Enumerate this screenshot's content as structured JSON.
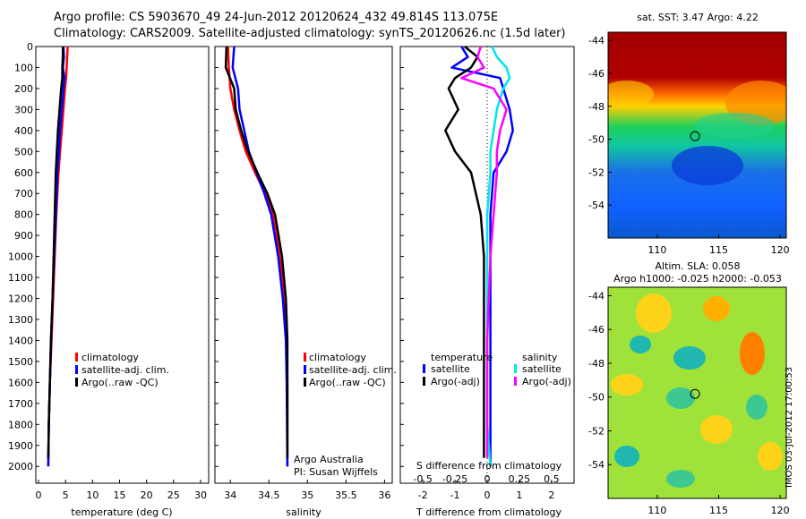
{
  "header": {
    "line1": "Argo profile: CS 5903670_49 24-Jun-2012 20120624_432 49.814S 113.075E",
    "line2": "Climatology: CARS2009. Satellite-adjusted climatology: synTS_20120626.nc (1.5d later)"
  },
  "footer": {
    "stamp": "IMOS 03-Jul-2012 17:00:53"
  },
  "colors": {
    "climatology": "#ff0000",
    "satellite": "#0000ff",
    "argo": "#000000",
    "sal_satellite": "#00e5ee",
    "sal_argo": "#ff00ff"
  },
  "chart_data": [
    {
      "type": "line",
      "name": "temperature-profile",
      "xlabel": "temperature (deg C)",
      "ylabel": "",
      "xlim": [
        -0.5,
        31.5
      ],
      "ylim": [
        2080,
        0
      ],
      "xticks": [
        0,
        5,
        10,
        15,
        20,
        25,
        30
      ],
      "yticks": [
        0,
        100,
        200,
        300,
        400,
        500,
        600,
        700,
        800,
        900,
        1000,
        1100,
        1200,
        1300,
        1400,
        1500,
        1600,
        1700,
        1800,
        1900,
        2000
      ],
      "legend": [
        "climatology",
        "satellite-adj. clim.",
        "Argo(..raw -QC)"
      ],
      "series": [
        {
          "name": "climatology",
          "color": "#ff0000",
          "x": [
            5.4,
            5.3,
            5.2,
            5.1,
            4.9,
            4.6,
            4.3,
            4.0,
            3.7,
            3.3,
            3.0,
            2.7,
            2.4,
            2.1,
            1.9,
            1.8
          ],
          "y": [
            0,
            50,
            100,
            150,
            200,
            300,
            400,
            500,
            600,
            800,
            1000,
            1200,
            1400,
            1600,
            1800,
            2000
          ]
        },
        {
          "name": "satellite-adj. clim.",
          "color": "#0000ff",
          "x": [
            4.6,
            4.7,
            4.5,
            4.8,
            4.6,
            4.3,
            4.0,
            3.8,
            3.5,
            3.2,
            2.9,
            2.6,
            2.3,
            2.1,
            1.9,
            1.8
          ],
          "y": [
            0,
            50,
            100,
            150,
            200,
            300,
            400,
            500,
            600,
            800,
            1000,
            1200,
            1400,
            1600,
            1800,
            2000
          ]
        },
        {
          "name": "Argo(..raw -QC)",
          "color": "#000000",
          "x": [
            4.5,
            4.5,
            4.4,
            4.4,
            4.2,
            3.9,
            3.6,
            3.4,
            3.2,
            3.0,
            2.8,
            2.6,
            2.3,
            2.1,
            1.9,
            1.8
          ],
          "y": [
            0,
            50,
            100,
            150,
            200,
            300,
            400,
            500,
            600,
            800,
            1000,
            1200,
            1400,
            1600,
            1800,
            1960
          ]
        }
      ]
    },
    {
      "type": "line",
      "name": "salinity-profile",
      "xlabel": "salinity",
      "xlim": [
        33.8,
        36.1
      ],
      "ylim": [
        2080,
        0
      ],
      "xticks": [
        34,
        34.5,
        35,
        35.5,
        36
      ],
      "legend": [
        "climatology",
        "satellite-adj. clim.",
        "Argo(..raw -QC)"
      ],
      "annotation": [
        "Argo Australia",
        "PI: Susan Wijffels"
      ],
      "series": [
        {
          "name": "climatology",
          "color": "#ff0000",
          "x": [
            33.97,
            33.98,
            34.0,
            34.05,
            34.12,
            34.2,
            34.32,
            34.45,
            34.55,
            34.64,
            34.7,
            34.73,
            34.74,
            34.74
          ],
          "y": [
            0,
            100,
            200,
            300,
            400,
            500,
            600,
            700,
            800,
            1000,
            1200,
            1400,
            1600,
            2000
          ]
        },
        {
          "name": "satellite-adj. clim.",
          "color": "#0000ff",
          "x": [
            34.05,
            34.03,
            34.1,
            34.12,
            34.18,
            34.24,
            34.34,
            34.44,
            34.53,
            34.62,
            34.68,
            34.72,
            34.73,
            34.74
          ],
          "y": [
            0,
            100,
            200,
            300,
            400,
            500,
            600,
            700,
            800,
            1000,
            1200,
            1400,
            1600,
            2000
          ]
        },
        {
          "name": "Argo(..raw -QC)",
          "color": "#000000",
          "x": [
            33.95,
            33.94,
            34.05,
            34.07,
            34.14,
            34.23,
            34.35,
            34.48,
            34.58,
            34.67,
            34.72,
            34.74,
            34.74,
            34.74
          ],
          "y": [
            0,
            100,
            200,
            300,
            400,
            500,
            600,
            700,
            800,
            1000,
            1200,
            1400,
            1600,
            1960
          ]
        }
      ]
    },
    {
      "type": "line",
      "name": "difference-profile",
      "xlabel": "T difference from climatology",
      "xlabel2": "S difference from climatology",
      "xlim": [
        -2.7,
        2.7
      ],
      "ylim": [
        2080,
        0
      ],
      "xticks": [
        -2,
        -1,
        0,
        1,
        2
      ],
      "xticks_s": [
        "-0.5",
        "-0.25",
        "0",
        "0.25",
        "0.5"
      ],
      "legend": {
        "temperature": "temperature",
        "salinity": "salinity",
        "t_entries": [
          "satellite",
          "Argo(-adj)"
        ],
        "s_entries": [
          "satellite",
          "Argo(-adj)"
        ]
      },
      "series": [
        {
          "name": "T satellite",
          "color": "#0000ff",
          "x": [
            -0.8,
            -0.6,
            -1.1,
            0.4,
            0.5,
            0.7,
            0.8,
            0.6,
            0.2,
            0.1,
            0.1,
            0.1,
            0.1,
            0.1
          ],
          "y": [
            0,
            50,
            100,
            150,
            200,
            300,
            400,
            500,
            600,
            800,
            1000,
            1400,
            1800,
            2000
          ]
        },
        {
          "name": "T Argo(-adj)",
          "color": "#000000",
          "x": [
            -0.7,
            -0.3,
            -0.5,
            -1.0,
            -1.2,
            -0.9,
            -1.3,
            -1.0,
            -0.5,
            -0.2,
            -0.1,
            -0.1,
            -0.1,
            -0.1
          ],
          "y": [
            0,
            50,
            100,
            150,
            200,
            300,
            400,
            500,
            600,
            800,
            1000,
            1400,
            1800,
            1960
          ]
        },
        {
          "name": "S satellite",
          "color": "#00e5ee",
          "x": [
            0.15,
            0.3,
            0.6,
            0.7,
            0.5,
            0.3,
            0.2,
            0.1,
            0.1,
            0.0,
            0.0,
            0.0,
            0.0,
            0.1
          ],
          "y": [
            0,
            50,
            100,
            150,
            200,
            300,
            400,
            500,
            600,
            800,
            1000,
            1400,
            1800,
            2000
          ]
        },
        {
          "name": "S Argo(-adj)",
          "color": "#ff00ff",
          "x": [
            -0.2,
            -0.3,
            -0.1,
            -0.8,
            0.2,
            0.6,
            0.4,
            0.3,
            0.3,
            0.2,
            0.1,
            0.0,
            0.0,
            0.0
          ],
          "y": [
            0,
            50,
            100,
            150,
            200,
            300,
            400,
            500,
            600,
            800,
            1000,
            1400,
            1800,
            1960
          ]
        }
      ]
    },
    {
      "type": "heatmap",
      "name": "sst-map",
      "title": "sat. SST: 3.47  Argo: 4.22",
      "xlim": [
        106,
        120.5
      ],
      "ylim": [
        -56,
        -43.5
      ],
      "xticks": [
        110,
        115,
        120
      ],
      "yticks": [
        -44,
        -46,
        -48,
        -50,
        -52,
        -54
      ],
      "marker": {
        "lon": 113.075,
        "lat": -49.814
      }
    },
    {
      "type": "heatmap",
      "name": "sla-map",
      "title": "Altim. SLA: 0.058",
      "subtitle": "Argo h1000: -0.025 h2000: -0.053",
      "xlim": [
        106,
        120.5
      ],
      "ylim": [
        -56,
        -43.5
      ],
      "xticks": [
        110,
        115,
        120
      ],
      "yticks": [
        -44,
        -46,
        -48,
        -50,
        -52,
        -54
      ],
      "marker": {
        "lon": 113.075,
        "lat": -49.814
      }
    }
  ]
}
